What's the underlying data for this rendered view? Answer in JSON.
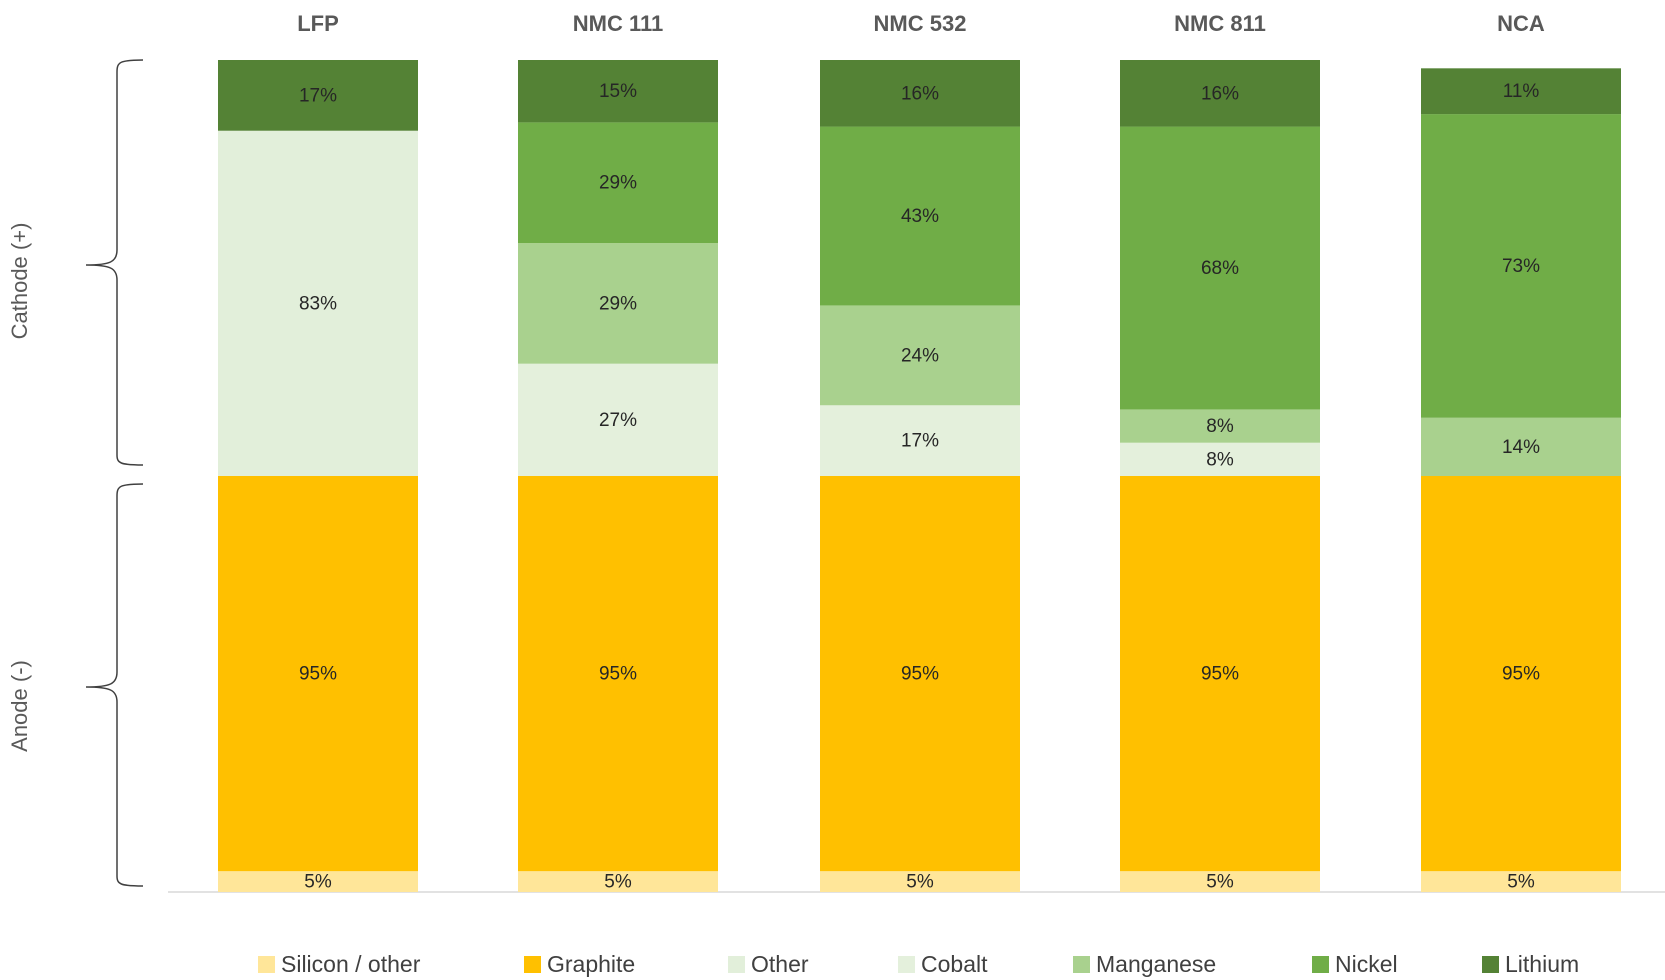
{
  "chart_data": {
    "type": "bar",
    "stacked": true,
    "categories": [
      "LFP",
      "NMC 111",
      "NMC 532",
      "NMC 811",
      "NCA"
    ],
    "ylim": [
      0,
      100
    ],
    "groups": [
      {
        "name": "Anode (-)",
        "series": [
          {
            "name": "Silicon / other",
            "color": "#FFE699",
            "values": [
              5,
              5,
              5,
              5,
              5
            ],
            "value_labels": [
              "5%",
              "5%",
              "5%",
              "5%",
              "5%"
            ]
          },
          {
            "name": "Graphite",
            "color": "#FFC000",
            "values": [
              95,
              95,
              95,
              95,
              95
            ],
            "value_labels": [
              "95%",
              "95%",
              "95%",
              "95%",
              "95%"
            ]
          }
        ]
      },
      {
        "name": "Cathode (+)",
        "series": [
          {
            "name": "Other",
            "color": "#E2EFDA",
            "values": [
              83,
              null,
              null,
              null,
              null
            ],
            "value_labels": [
              "83%",
              null,
              null,
              null,
              null
            ]
          },
          {
            "name": "Cobalt",
            "color": "#E4F0DC",
            "values": [
              null,
              27,
              17,
              8,
              null
            ],
            "value_labels": [
              null,
              "27%",
              "17%",
              "8%",
              null
            ]
          },
          {
            "name": "Manganese",
            "color": "#A9D18E",
            "values": [
              null,
              29,
              24,
              8,
              14
            ],
            "value_labels": [
              null,
              "29%",
              "24%",
              "8%",
              "14%"
            ]
          },
          {
            "name": "Nickel",
            "color": "#70AD47",
            "values": [
              null,
              29,
              43,
              68,
              73
            ],
            "value_labels": [
              null,
              "29%",
              "43%",
              "68%",
              "73%"
            ]
          },
          {
            "name": "Lithium",
            "color": "#548235",
            "values": [
              17,
              15,
              16,
              16,
              11
            ],
            "value_labels": [
              "17%",
              "15%",
              "16%",
              "16%",
              "11%"
            ]
          }
        ]
      }
    ]
  }
}
